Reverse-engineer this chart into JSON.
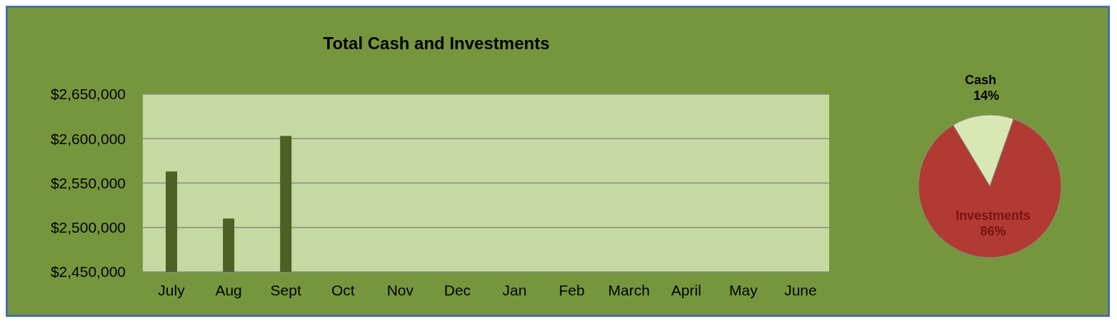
{
  "chart_data": [
    {
      "type": "bar",
      "title": "Total Cash and Investments",
      "categories": [
        "July",
        "Aug",
        "Sept",
        "Oct",
        "Nov",
        "Dec",
        "Jan",
        "Feb",
        "March",
        "April",
        "May",
        "June"
      ],
      "values": [
        2563000,
        2510000,
        2603000,
        null,
        null,
        null,
        null,
        null,
        null,
        null,
        null,
        null
      ],
      "color": "#4d6127",
      "ylim": [
        2450000,
        2650000
      ],
      "yticks": [
        {
          "value": 2450000,
          "label": "$2,450,000"
        },
        {
          "value": 2500000,
          "label": "$2,500,000"
        },
        {
          "value": 2550000,
          "label": "$2,550,000"
        },
        {
          "value": 2600000,
          "label": "$2,600,000"
        },
        {
          "value": 2650000,
          "label": "$2,650,000"
        }
      ],
      "grid": "y"
    },
    {
      "type": "pie",
      "categories": [
        "Cash",
        "Investments"
      ],
      "values": [
        14,
        86
      ],
      "colors": [
        "#d9e7b3",
        "#b13a33"
      ],
      "value_labels": [
        "14%",
        "86%"
      ]
    }
  ]
}
